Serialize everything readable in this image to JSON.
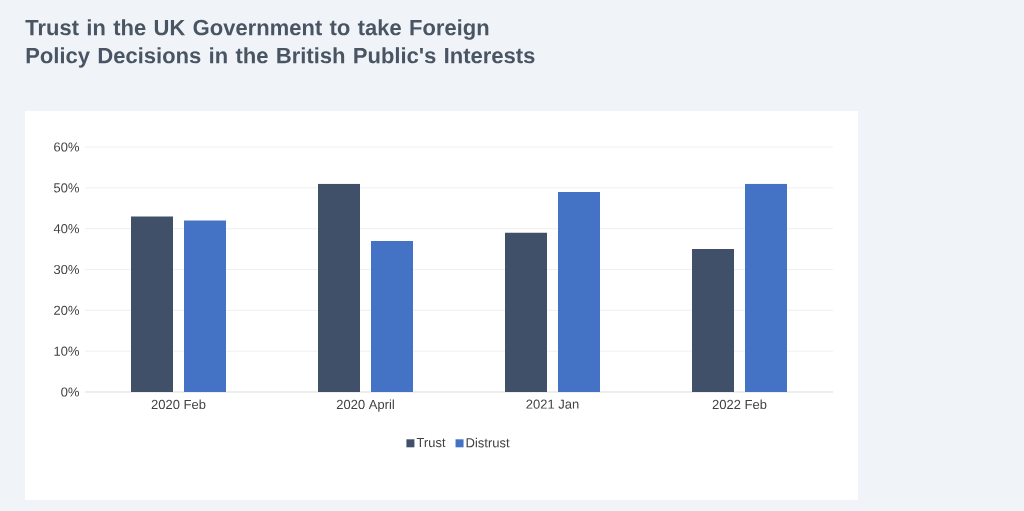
{
  "chart_data": {
    "type": "bar",
    "title": "Trust in the UK Government to take Foreign Policy Decisions in the British Public's Interests",
    "categories": [
      "2020 Feb",
      "2020 April",
      "2021 Jan",
      "2022 Feb"
    ],
    "series": [
      {
        "name": "Trust",
        "color": "#3f5068",
        "values": [
          43,
          51,
          39,
          35
        ]
      },
      {
        "name": "Distrust",
        "color": "#4472c4",
        "values": [
          42,
          37,
          49,
          51
        ]
      }
    ],
    "ylim": [
      0,
      60
    ],
    "yticks": [
      {
        "value": 0,
        "label": "0%"
      },
      {
        "value": 10,
        "label": "10%"
      },
      {
        "value": 20,
        "label": "20%"
      },
      {
        "value": 30,
        "label": "30%"
      },
      {
        "value": 40,
        "label": "40%"
      },
      {
        "value": 50,
        "label": "50%"
      },
      {
        "value": 60,
        "label": "60%"
      }
    ],
    "grid": "y",
    "legend": "bottom"
  }
}
